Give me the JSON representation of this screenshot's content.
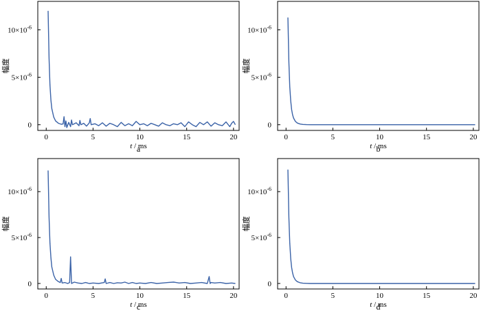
{
  "figure": {
    "line_color": "#3a62a7",
    "axis_color": "#000000"
  },
  "chart_data": [
    {
      "type": "line",
      "panel_label": "a",
      "xlabel_var": "t",
      "xlabel_unit": " / ms",
      "ylabel": "幅度",
      "xlim": [
        -0.9,
        20.6
      ],
      "ylim": [
        -6e-07,
        1.3e-05
      ],
      "xticks": [
        0,
        5,
        10,
        15,
        20
      ],
      "xtick_labels": [
        "0",
        "5",
        "10",
        "15",
        "20"
      ],
      "yticks": [
        0,
        5e-06,
        1e-05
      ],
      "ytick_labels": [
        {
          "base": "0",
          "exp": ""
        },
        {
          "base": "5×10",
          "exp": "-6"
        },
        {
          "base": "10×10",
          "exp": "-6"
        }
      ],
      "series": [
        {
          "x": [
            0.2,
            0.3,
            0.4,
            0.5,
            0.6,
            0.8,
            1.0,
            1.3,
            1.6,
            1.8,
            1.9,
            2.0,
            2.1,
            2.2,
            2.4,
            2.6,
            2.7,
            2.8,
            3.2,
            3.5,
            3.6,
            3.7,
            4.0,
            4.3,
            4.6,
            4.7,
            4.8,
            5.2,
            5.6,
            6.0,
            6.4,
            6.8,
            7.2,
            7.6,
            8.0,
            8.4,
            8.8,
            9.2,
            9.6,
            10.0,
            10.4,
            10.8,
            11.2,
            11.6,
            12.0,
            12.4,
            12.8,
            13.2,
            13.6,
            14.0,
            14.4,
            14.8,
            15.2,
            15.6,
            16.0,
            16.4,
            16.8,
            17.2,
            17.6,
            18.0,
            18.4,
            18.8,
            19.2,
            19.6,
            19.8,
            20.0,
            20.2
          ],
          "y": [
            1.2e-05,
            7e-06,
            4.2e-06,
            2.6e-06,
            1.7e-06,
            8e-07,
            4e-07,
            1.5e-07,
            5e-08,
            8e-08,
            8.5e-07,
            -2e-07,
            4e-07,
            -3e-07,
            2.5e-07,
            -2e-07,
            5e-07,
            0.0,
            2e-07,
            -1e-07,
            4.5e-07,
            0.0,
            1.5e-07,
            -1.5e-07,
            2e-07,
            6.5e-07,
            0.0,
            1e-07,
            -1e-07,
            2e-07,
            -1.5e-07,
            1.5e-07,
            0.0,
            -2e-07,
            2.5e-07,
            -1e-07,
            1e-07,
            -1e-07,
            3.5e-07,
            0.0,
            1e-07,
            -1e-07,
            1.5e-07,
            0.0,
            -1.5e-07,
            2e-07,
            0.0,
            -1e-07,
            1e-07,
            0.0,
            2e-07,
            -2e-07,
            3e-07,
            0.0,
            -2e-07,
            2.5e-07,
            0.0,
            3e-07,
            -1.5e-07,
            2e-07,
            0.0,
            -1e-07,
            3e-07,
            -2e-07,
            1.5e-07,
            3.5e-07,
            0.0
          ]
        }
      ]
    },
    {
      "type": "line",
      "panel_label": "b",
      "xlabel_var": "t",
      "xlabel_unit": " / ms",
      "ylabel": "幅度",
      "xlim": [
        -0.9,
        20.6
      ],
      "ylim": [
        -6e-07,
        1.3e-05
      ],
      "xticks": [
        0,
        5,
        10,
        15,
        20
      ],
      "xtick_labels": [
        "0",
        "5",
        "10",
        "15",
        "20"
      ],
      "yticks": [
        0,
        5e-06,
        1e-05
      ],
      "ytick_labels": [
        {
          "base": "0",
          "exp": ""
        },
        {
          "base": "5×10",
          "exp": "-6"
        },
        {
          "base": "10×10",
          "exp": "-6"
        }
      ],
      "series": [
        {
          "x": [
            0.2,
            0.3,
            0.4,
            0.5,
            0.6,
            0.7,
            0.8,
            1.0,
            1.2,
            1.5,
            1.8,
            2.2,
            2.6,
            3.0,
            4.0,
            6.0,
            10.0,
            15.0,
            20.0,
            20.2
          ],
          "y": [
            1.13e-05,
            6.6e-06,
            4e-06,
            2.5e-06,
            1.6e-06,
            1.05e-06,
            7e-07,
            3.5e-07,
            1.8e-07,
            7e-08,
            3e-08,
            1e-08,
            0.0,
            0.0,
            0.0,
            0.0,
            0.0,
            0.0,
            0.0,
            0.0
          ]
        }
      ]
    },
    {
      "type": "line",
      "panel_label": "c",
      "xlabel_var": "t",
      "xlabel_unit": " / ms",
      "ylabel": "幅度",
      "xlim": [
        -0.9,
        20.6
      ],
      "ylim": [
        -6e-07,
        1.36e-05
      ],
      "xticks": [
        0,
        5,
        10,
        15,
        20
      ],
      "xtick_labels": [
        "0",
        "5",
        "10",
        "15",
        "20"
      ],
      "yticks": [
        0,
        5e-06,
        1e-05
      ],
      "ytick_labels": [
        {
          "base": "0",
          "exp": ""
        },
        {
          "base": "5×10",
          "exp": "-6"
        },
        {
          "base": "10×10",
          "exp": "-6"
        }
      ],
      "series": [
        {
          "x": [
            0.2,
            0.3,
            0.4,
            0.5,
            0.6,
            0.8,
            1.0,
            1.3,
            1.5,
            1.6,
            1.7,
            2.0,
            2.3,
            2.5,
            2.6,
            2.7,
            3.0,
            3.4,
            3.8,
            4.2,
            4.6,
            5.0,
            5.6,
            6.2,
            6.3,
            6.4,
            6.8,
            7.2,
            7.6,
            8.0,
            8.4,
            8.8,
            9.2,
            9.6,
            10.0,
            10.6,
            11.2,
            11.8,
            12.4,
            13.0,
            13.6,
            14.2,
            14.8,
            15.4,
            16.0,
            16.6,
            17.2,
            17.4,
            17.5,
            17.6,
            18.0,
            18.6,
            19.2,
            19.8,
            20.2
          ],
          "y": [
            1.23e-05,
            7.2e-06,
            4.4e-06,
            2.8e-06,
            1.8e-06,
            9e-07,
            4.5e-07,
            2e-07,
            1e-07,
            5.5e-07,
            5e-08,
            1e-07,
            0.0,
            1e-07,
            2.9e-06,
            0.0,
            1.5e-07,
            5e-08,
            0.0,
            1e-07,
            0.0,
            5e-08,
            0.0,
            1e-07,
            5e-07,
            0.0,
            1e-07,
            0.0,
            8e-08,
            5e-08,
            1.5e-07,
            0.0,
            1e-07,
            0.0,
            5e-08,
            0.0,
            1e-07,
            0.0,
            5e-08,
            1e-07,
            1.5e-07,
            5e-08,
            1e-07,
            0.0,
            5e-08,
            1e-07,
            0.0,
            7.5e-07,
            0.0,
            1e-07,
            5e-08,
            1e-07,
            0.0,
            5e-08,
            0.0
          ]
        }
      ]
    },
    {
      "type": "line",
      "panel_label": "d",
      "xlabel_var": "t",
      "xlabel_unit": " / ms",
      "ylabel": "幅度",
      "xlim": [
        -0.9,
        20.6
      ],
      "ylim": [
        -6e-07,
        1.36e-05
      ],
      "xticks": [
        0,
        5,
        10,
        15,
        20
      ],
      "xtick_labels": [
        "0",
        "5",
        "10",
        "15",
        "20"
      ],
      "yticks": [
        0,
        5e-06,
        1e-05
      ],
      "ytick_labels": [
        {
          "base": "0",
          "exp": ""
        },
        {
          "base": "5×10",
          "exp": "-6"
        },
        {
          "base": "10×10",
          "exp": "-6"
        }
      ],
      "series": [
        {
          "x": [
            0.2,
            0.3,
            0.4,
            0.5,
            0.6,
            0.7,
            0.8,
            1.0,
            1.2,
            1.5,
            1.8,
            2.2,
            2.6,
            3.0,
            4.0,
            6.0,
            10.0,
            15.0,
            20.0,
            20.2
          ],
          "y": [
            1.24e-05,
            7.2e-06,
            4.4e-06,
            2.7e-06,
            1.75e-06,
            1.15e-06,
            7.5e-07,
            3.8e-07,
            2e-07,
            8e-08,
            3e-08,
            1e-08,
            0.0,
            0.0,
            0.0,
            0.0,
            0.0,
            0.0,
            0.0,
            0.0
          ]
        }
      ]
    }
  ]
}
